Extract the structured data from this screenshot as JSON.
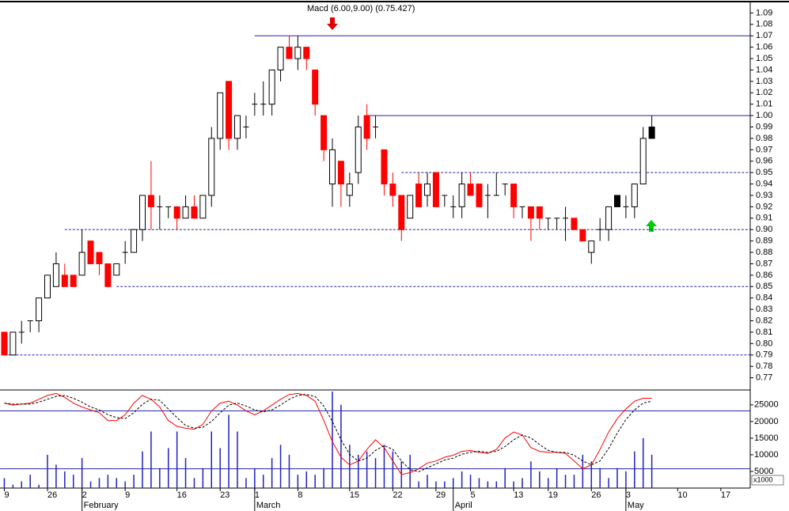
{
  "chart_data": {
    "type": "candlestick",
    "title": "Macd (6.00,9.00) (0.75.427)",
    "xlim": [
      -0.5,
      86.4
    ],
    "x_ticks": [
      {
        "value": 0,
        "label": "9"
      },
      {
        "value": 5,
        "label": "26"
      },
      {
        "value": 9,
        "label": "2"
      },
      {
        "value": 14,
        "label": "9"
      },
      {
        "value": 20,
        "label": "16"
      },
      {
        "value": 25,
        "label": "23"
      },
      {
        "value": 29,
        "label": "1"
      },
      {
        "value": 34,
        "label": "8"
      },
      {
        "value": 40,
        "label": "15"
      },
      {
        "value": 45,
        "label": "22"
      },
      {
        "value": 50,
        "label": "29"
      },
      {
        "value": 54,
        "label": "5"
      },
      {
        "value": 59,
        "label": "13"
      },
      {
        "value": 63,
        "label": "19"
      },
      {
        "value": 68,
        "label": "26"
      },
      {
        "value": 72,
        "label": "3"
      },
      {
        "value": 78,
        "label": "10"
      },
      {
        "value": 83,
        "label": "17"
      }
    ],
    "months": [
      {
        "value": 9,
        "label": "February"
      },
      {
        "value": 29,
        "label": "March"
      },
      {
        "value": 52,
        "label": "April"
      },
      {
        "value": 72,
        "label": "May"
      }
    ],
    "open": [
      0.81,
      0.79,
      0.81,
      0.82,
      0.82,
      0.84,
      0.85,
      0.86,
      0.86,
      0.86,
      0.89,
      0.88,
      0.87,
      0.86,
      0.88,
      0.88,
      0.9,
      0.93,
      0.92,
      0.92,
      0.92,
      0.91,
      0.92,
      0.91,
      0.93,
      0.98,
      1.03,
      0.98,
      0.99,
      1.01,
      1.01,
      1.01,
      1.04,
      1.06,
      1.05,
      1.06,
      1.04,
      1.0,
      0.94,
      0.96,
      0.93,
      0.95,
      1.0,
      0.99,
      0.97,
      0.94,
      0.93,
      0.91,
      0.94,
      0.93,
      0.95,
      0.93,
      0.92,
      0.92,
      0.94,
      0.94,
      0.93,
      0.93,
      0.94,
      0.94,
      0.92,
      0.92,
      0.92,
      0.91,
      0.91,
      0.91,
      0.91,
      0.9,
      0.88,
      0.9,
      0.9,
      0.93,
      0.92,
      0.92,
      0.94,
      0.99
    ],
    "high": [
      0.81,
      0.81,
      0.82,
      0.82,
      0.84,
      0.86,
      0.88,
      0.87,
      0.86,
      0.9,
      0.89,
      0.88,
      0.87,
      0.87,
      0.89,
      0.9,
      0.93,
      0.96,
      0.93,
      0.92,
      0.92,
      0.93,
      0.93,
      0.93,
      0.99,
      1.02,
      1.03,
      1.0,
      1.0,
      1.02,
      1.03,
      1.04,
      1.06,
      1.07,
      1.07,
      1.06,
      1.04,
      1.0,
      0.98,
      0.96,
      0.95,
      1.0,
      1.01,
      1.0,
      0.97,
      0.95,
      0.93,
      0.93,
      0.95,
      0.95,
      0.95,
      0.93,
      0.93,
      0.95,
      0.95,
      0.94,
      0.94,
      0.95,
      0.94,
      0.94,
      0.92,
      0.92,
      0.92,
      0.91,
      0.91,
      0.92,
      0.91,
      0.9,
      0.89,
      0.91,
      0.92,
      0.93,
      0.93,
      0.94,
      0.99,
      1.0
    ],
    "low": [
      0.79,
      0.79,
      0.8,
      0.81,
      0.81,
      0.84,
      0.85,
      0.85,
      0.85,
      0.86,
      0.87,
      0.86,
      0.85,
      0.86,
      0.87,
      0.88,
      0.89,
      0.9,
      0.9,
      0.91,
      0.9,
      0.91,
      0.91,
      0.91,
      0.92,
      0.97,
      0.97,
      0.97,
      0.98,
      1.0,
      1.0,
      1.0,
      1.03,
      1.05,
      1.04,
      1.04,
      1.0,
      0.96,
      0.92,
      0.92,
      0.92,
      0.94,
      0.97,
      0.98,
      0.93,
      0.92,
      0.89,
      0.91,
      0.92,
      0.92,
      0.92,
      0.92,
      0.91,
      0.91,
      0.93,
      0.92,
      0.91,
      0.93,
      0.93,
      0.91,
      0.91,
      0.89,
      0.9,
      0.9,
      0.9,
      0.89,
      0.9,
      0.89,
      0.87,
      0.89,
      0.89,
      0.92,
      0.91,
      0.91,
      0.94,
      0.98
    ],
    "close": [
      0.79,
      0.81,
      0.81,
      0.82,
      0.84,
      0.86,
      0.87,
      0.85,
      0.85,
      0.88,
      0.87,
      0.87,
      0.85,
      0.87,
      0.88,
      0.9,
      0.93,
      0.92,
      0.92,
      0.92,
      0.91,
      0.92,
      0.91,
      0.93,
      0.98,
      1.02,
      0.98,
      1.0,
      0.99,
      1.01,
      1.01,
      1.04,
      1.06,
      1.05,
      1.06,
      1.05,
      1.01,
      0.97,
      0.97,
      0.94,
      0.94,
      0.99,
      0.98,
      0.99,
      0.94,
      0.93,
      0.9,
      0.93,
      0.92,
      0.94,
      0.92,
      0.93,
      0.92,
      0.94,
      0.93,
      0.92,
      0.93,
      0.93,
      0.94,
      0.92,
      0.92,
      0.91,
      0.91,
      0.91,
      0.91,
      0.91,
      0.9,
      0.89,
      0.89,
      0.9,
      0.92,
      0.92,
      0.92,
      0.94,
      0.98,
      0.98
    ],
    "up_color": "#ffffff",
    "down_color": "#ff0000",
    "marked_color": "#000000",
    "marked": [
      71,
      75
    ],
    "ylim": [
      0.76,
      1.1
    ],
    "yticks": [
      {
        "value": 1.09,
        "label": "1.09"
      },
      {
        "value": 1.08,
        "label": "1.08"
      },
      {
        "value": 1.07,
        "label": "1.07"
      },
      {
        "value": 1.06,
        "label": "1.06"
      },
      {
        "value": 1.05,
        "label": "1.05"
      },
      {
        "value": 1.04,
        "label": "1.04"
      },
      {
        "value": 1.03,
        "label": "1.03"
      },
      {
        "value": 1.02,
        "label": "1.02"
      },
      {
        "value": 1.01,
        "label": "1.01"
      },
      {
        "value": 1.0,
        "label": "1.00"
      },
      {
        "value": 0.99,
        "label": "0.99"
      },
      {
        "value": 0.98,
        "label": "0.98"
      },
      {
        "value": 0.97,
        "label": "0.97"
      },
      {
        "value": 0.96,
        "label": "0.96"
      },
      {
        "value": 0.95,
        "label": "0.95"
      },
      {
        "value": 0.94,
        "label": "0.94"
      },
      {
        "value": 0.93,
        "label": "0.93"
      },
      {
        "value": 0.92,
        "label": "0.92"
      },
      {
        "value": 0.91,
        "label": "0.91"
      },
      {
        "value": 0.9,
        "label": "0.90"
      },
      {
        "value": 0.89,
        "label": "0.89"
      },
      {
        "value": 0.88,
        "label": "0.88"
      },
      {
        "value": 0.87,
        "label": "0.87"
      },
      {
        "value": 0.86,
        "label": "0.86"
      },
      {
        "value": 0.85,
        "label": "0.85"
      },
      {
        "value": 0.84,
        "label": "0.84"
      },
      {
        "value": 0.83,
        "label": "0.83"
      },
      {
        "value": 0.82,
        "label": "0.82"
      },
      {
        "value": 0.81,
        "label": "0.81"
      },
      {
        "value": 0.8,
        "label": "0.80"
      },
      {
        "value": 0.79,
        "label": "0.79"
      },
      {
        "value": 0.78,
        "label": "0.78"
      },
      {
        "value": 0.77,
        "label": "0.77"
      }
    ],
    "hlines": [
      {
        "value": 1.07,
        "from": 29,
        "dash": false
      },
      {
        "value": 1.0,
        "from": 42,
        "dash": false
      },
      {
        "value": 0.95,
        "from": 46,
        "dash": true
      },
      {
        "value": 0.9,
        "from": 7,
        "dash": true
      },
      {
        "value": 0.85,
        "from": 13,
        "dash": true
      },
      {
        "value": 0.79,
        "from": 0,
        "dash": true
      }
    ],
    "line_color": "#2323a8",
    "volume": {
      "color": "#2020c0",
      "ylim": [
        0,
        29000
      ],
      "yticks": [
        25000,
        20000,
        15000,
        10000,
        5000
      ],
      "unit": "x1000",
      "values": [
        3000,
        1000,
        2000,
        4000,
        1000,
        10000,
        7000,
        5000,
        4000,
        9000,
        2000,
        3000,
        4000,
        3000,
        2000,
        4000,
        11000,
        17000,
        6000,
        12000,
        17000,
        9000,
        3000,
        6000,
        17000,
        12000,
        22000,
        17000,
        3000,
        6000,
        4000,
        9000,
        13000,
        10000,
        4000,
        5000,
        4000,
        6000,
        29000,
        25000,
        13000,
        10000,
        11000,
        9000,
        13000,
        11000,
        8000,
        10000,
        2000,
        4000,
        2000,
        2000,
        3000,
        5000,
        4000,
        3000,
        2000,
        2000,
        6000,
        2000,
        3000,
        8000,
        5000,
        3000,
        6000,
        4000,
        4000,
        10000,
        8000,
        6000,
        3000,
        6000,
        5000,
        11000,
        15000,
        10000
      ]
    },
    "stochastic": {
      "ylim": [
        0,
        100
      ],
      "levels": [
        20,
        80
      ],
      "series": [
        {
          "color": "#ff0000",
          "dash": false,
          "values": [
            88,
            86,
            87,
            88,
            92,
            96,
            98,
            94,
            88,
            84,
            81,
            78,
            70,
            70,
            76,
            88,
            96,
            92,
            84,
            70,
            64,
            62,
            61,
            66,
            80,
            88,
            90,
            86,
            80,
            76,
            80,
            86,
            92,
            97,
            98,
            96,
            90,
            70,
            48,
            32,
            24,
            28,
            40,
            50,
            42,
            28,
            14,
            16,
            20,
            26,
            28,
            32,
            34,
            38,
            39,
            37,
            36,
            40,
            52,
            58,
            55,
            42,
            38,
            37,
            37,
            36,
            28,
            20,
            24,
            40,
            58,
            72,
            82,
            90,
            93,
            93
          ]
        },
        {
          "color": "#000000",
          "dash": true,
          "values": [
            88,
            87,
            87,
            87,
            89,
            92,
            95,
            96,
            93,
            89,
            84,
            81,
            76,
            73,
            72,
            78,
            87,
            92,
            91,
            82,
            73,
            65,
            62,
            63,
            69,
            78,
            86,
            88,
            85,
            81,
            79,
            81,
            86,
            92,
            96,
            97,
            95,
            85,
            69,
            50,
            35,
            28,
            31,
            39,
            44,
            40,
            28,
            19,
            17,
            21,
            25,
            29,
            31,
            35,
            37,
            38,
            37,
            38,
            43,
            50,
            55,
            52,
            45,
            39,
            37,
            37,
            34,
            28,
            24,
            28,
            41,
            57,
            71,
            81,
            88,
            90
          ]
        }
      ]
    }
  }
}
